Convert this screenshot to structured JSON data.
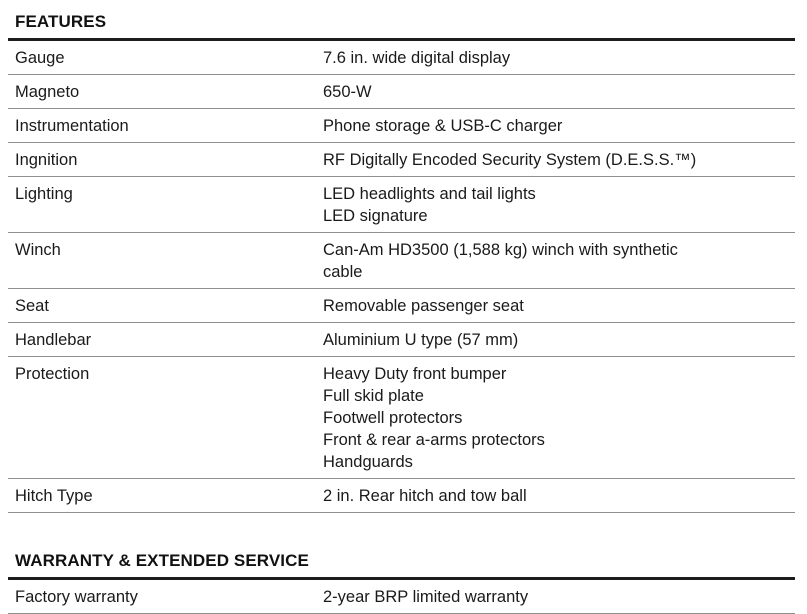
{
  "colors": {
    "background": "#ffffff",
    "text": "#1a1a1a",
    "section_rule": "#1c1c1c",
    "row_divider": "#8f8f8f"
  },
  "sections": [
    {
      "title": "FEATURES",
      "rows": [
        {
          "label": "Gauge",
          "lines": [
            "7.6 in. wide digital display"
          ]
        },
        {
          "label": "Magneto",
          "lines": [
            "650-W"
          ]
        },
        {
          "label": "Instrumentation",
          "lines": [
            "Phone storage & USB-C charger"
          ]
        },
        {
          "label": "Ingnition",
          "lines": [
            "RF Digitally Encoded Security System (D.E.S.S.™)"
          ]
        },
        {
          "label": "Lighting",
          "lines": [
            "LED headlights and tail lights",
            "LED signature"
          ]
        },
        {
          "label": "Winch",
          "lines": [
            "Can-Am HD3500 (1,588 kg) winch with synthetic",
            "cable"
          ]
        },
        {
          "label": "Seat",
          "lines": [
            "Removable passenger seat"
          ]
        },
        {
          "label": "Handlebar",
          "lines": [
            "Aluminium U type (57 mm)"
          ]
        },
        {
          "label": "Protection",
          "lines": [
            "Heavy Duty front bumper",
            "Full skid plate",
            "Footwell protectors",
            "Front & rear a-arms protectors",
            "Handguards"
          ]
        },
        {
          "label": "Hitch Type",
          "lines": [
            "2 in. Rear hitch and tow ball"
          ]
        }
      ]
    },
    {
      "title": "WARRANTY & EXTENDED SERVICE",
      "rows": [
        {
          "label": "Factory warranty",
          "lines": [
            "2-year BRP limited warranty"
          ]
        }
      ]
    }
  ]
}
